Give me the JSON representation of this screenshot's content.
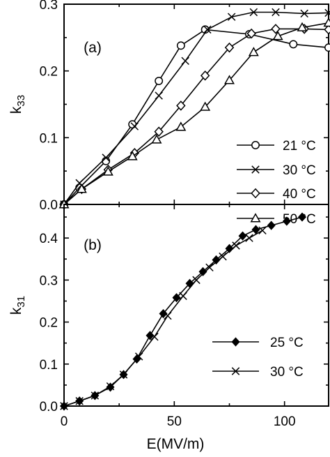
{
  "chart_data": [
    {
      "type": "line",
      "panel_label": "(a)",
      "xlim": [
        0,
        120
      ],
      "ylim": [
        0,
        0.3
      ],
      "xticks": [
        0,
        50,
        100
      ],
      "yticks": [
        0.0,
        0.1,
        0.2,
        0.3
      ],
      "ytick_labels": [
        "0.0",
        "0.1",
        "0.2",
        "0.3"
      ],
      "xlabel": "",
      "ylabel": "k",
      "ylabel_sub": "33",
      "legend_position": "right",
      "series": [
        {
          "name": "21 °C",
          "marker": "circle",
          "x": [
            0,
            7,
            19,
            31,
            43,
            53,
            64,
            84,
            104,
            120
          ],
          "y": [
            0,
            0.025,
            0.065,
            0.12,
            0.185,
            0.238,
            0.262,
            0.255,
            0.24,
            0.235
          ]
        },
        {
          "name": "30 °C",
          "marker": "cross",
          "x": [
            0,
            7,
            19,
            32,
            43,
            55,
            65,
            76,
            86,
            96,
            109,
            120
          ],
          "y": [
            0,
            0.032,
            0.07,
            0.117,
            0.163,
            0.215,
            0.262,
            0.281,
            0.288,
            0.288,
            0.286,
            0.287
          ]
        },
        {
          "name": "40 °C",
          "marker": "diamond",
          "x": [
            0,
            8,
            20,
            32,
            43,
            53,
            64,
            75,
            85,
            96,
            109,
            120
          ],
          "y": [
            0,
            0.023,
            0.052,
            0.077,
            0.109,
            0.148,
            0.193,
            0.235,
            0.256,
            0.263,
            0.263,
            0.262
          ]
        },
        {
          "name": "50 °C",
          "marker": "triangle",
          "x": [
            0,
            8,
            20,
            31,
            42,
            53,
            64,
            75,
            86,
            97,
            108,
            120
          ],
          "y": [
            0,
            0.023,
            0.049,
            0.072,
            0.097,
            0.116,
            0.146,
            0.186,
            0.228,
            0.252,
            0.265,
            0.272
          ]
        }
      ]
    },
    {
      "type": "line",
      "panel_label": "(b)",
      "xlim": [
        0,
        120
      ],
      "ylim": [
        0,
        0.48
      ],
      "xticks": [
        0,
        50,
        100
      ],
      "xtick_labels": [
        "0",
        "50",
        "100"
      ],
      "yticks": [
        0.0,
        0.1,
        0.2,
        0.3,
        0.4
      ],
      "ytick_labels": [
        "0.0",
        "0.1",
        "0.2",
        "0.3",
        "0.4"
      ],
      "xlabel": "E(MV/m)",
      "ylabel": "k",
      "ylabel_sub": "31",
      "legend_position": "lower-right",
      "series": [
        {
          "name": "25 °C",
          "marker": "filled-diamond",
          "x": [
            0,
            7,
            14,
            21,
            27,
            33,
            39,
            45,
            51,
            57,
            63,
            69,
            75,
            81,
            87,
            94,
            101,
            108
          ],
          "y": [
            0,
            0.012,
            0.025,
            0.045,
            0.075,
            0.112,
            0.168,
            0.22,
            0.258,
            0.292,
            0.32,
            0.348,
            0.375,
            0.405,
            0.42,
            0.43,
            0.44,
            0.45
          ]
        },
        {
          "name": "30 °C",
          "marker": "cross",
          "x": [
            0,
            7,
            14,
            21,
            27,
            34,
            41,
            47,
            54,
            60,
            66,
            72,
            78,
            84,
            90
          ],
          "y": [
            0,
            0.012,
            0.025,
            0.047,
            0.075,
            0.118,
            0.165,
            0.215,
            0.262,
            0.3,
            0.33,
            0.356,
            0.382,
            0.4,
            0.418
          ]
        }
      ]
    }
  ]
}
